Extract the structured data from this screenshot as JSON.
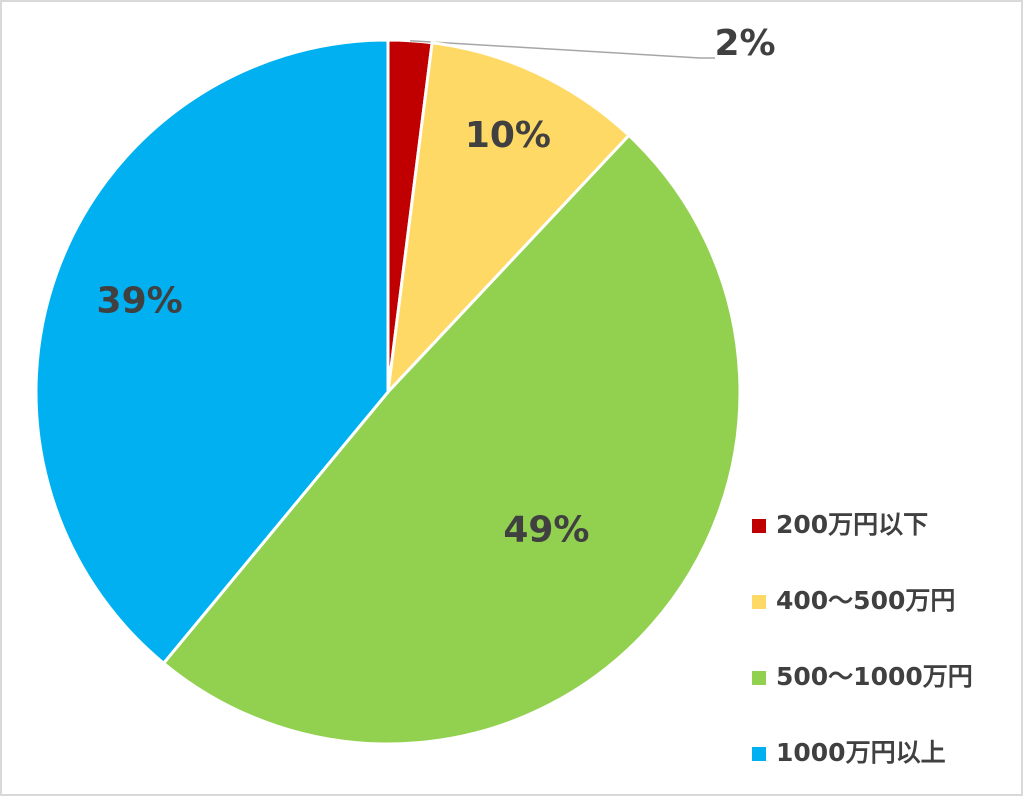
{
  "chart_data": {
    "type": "pie",
    "categories": [
      "200万円以下",
      "400～500万円",
      "500～1000万円",
      "1000万円以上"
    ],
    "values": [
      2,
      10,
      49,
      39
    ],
    "value_labels": [
      "2%",
      "10%",
      "49%",
      "39%"
    ],
    "colors": [
      "#c00000",
      "#ffd966",
      "#92d050",
      "#00b0f0"
    ],
    "legend": "right"
  }
}
